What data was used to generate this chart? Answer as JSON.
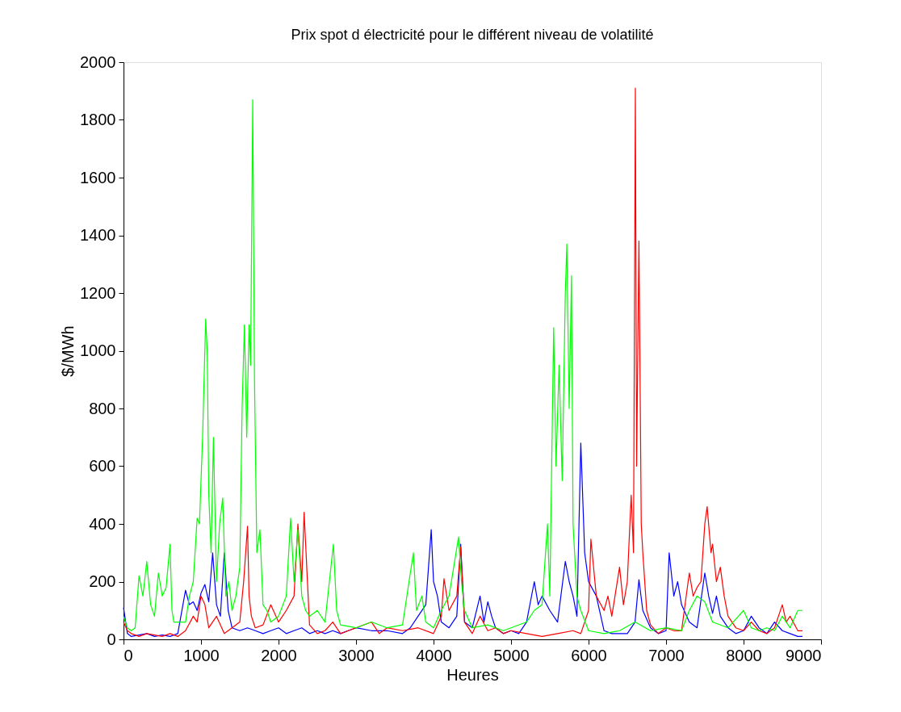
{
  "chart_data": {
    "type": "line",
    "title": "Prix spot d électricité pour le différent niveau de volatilité",
    "xlabel": "Heures",
    "ylabel": "$/MWh",
    "xlim": [
      0,
      9000
    ],
    "ylim": [
      0,
      2000
    ],
    "xticks": [
      0,
      1000,
      2000,
      3000,
      4000,
      5000,
      6000,
      7000,
      8000,
      9000
    ],
    "yticks": [
      0,
      200,
      400,
      600,
      800,
      1000,
      1200,
      1400,
      1600,
      1800,
      2000
    ],
    "grid": false,
    "legend": false,
    "series": [
      {
        "color": "#0000ff",
        "x": [
          0,
          50,
          100,
          200,
          300,
          400,
          500,
          600,
          700,
          800,
          850,
          900,
          950,
          1000,
          1050,
          1100,
          1150,
          1200,
          1250,
          1300,
          1350,
          1400,
          1500,
          1600,
          1700,
          1800,
          1900,
          2000,
          2100,
          2200,
          2300,
          2400,
          2500,
          2600,
          2700,
          2800,
          2900,
          3000,
          3200,
          3400,
          3600,
          3700,
          3800,
          3900,
          3970,
          4000,
          4050,
          4100,
          4200,
          4300,
          4350,
          4400,
          4500,
          4600,
          4650,
          4700,
          4750,
          4800,
          4900,
          5000,
          5100,
          5200,
          5300,
          5350,
          5400,
          5500,
          5600,
          5700,
          5750,
          5800,
          5850,
          5900,
          5950,
          6000,
          6100,
          6200,
          6300,
          6400,
          6500,
          6600,
          6650,
          6700,
          6800,
          6900,
          7000,
          7040,
          7100,
          7150,
          7200,
          7300,
          7400,
          7500,
          7550,
          7600,
          7650,
          7700,
          7800,
          7900,
          8000,
          8100,
          8200,
          8300,
          8400,
          8500,
          8600,
          8700,
          8760
        ],
        "values": [
          110,
          20,
          10,
          15,
          20,
          10,
          15,
          10,
          20,
          170,
          120,
          130,
          100,
          160,
          190,
          130,
          300,
          120,
          80,
          300,
          100,
          40,
          30,
          40,
          30,
          20,
          30,
          40,
          20,
          30,
          40,
          20,
          30,
          20,
          30,
          20,
          30,
          40,
          30,
          30,
          20,
          40,
          80,
          120,
          380,
          200,
          150,
          60,
          40,
          80,
          330,
          60,
          40,
          150,
          60,
          130,
          80,
          40,
          20,
          30,
          20,
          60,
          200,
          120,
          150,
          100,
          60,
          270,
          200,
          150,
          80,
          680,
          300,
          200,
          150,
          30,
          20,
          20,
          20,
          60,
          207,
          100,
          40,
          20,
          30,
          300,
          150,
          200,
          120,
          60,
          40,
          230,
          150,
          90,
          150,
          80,
          40,
          20,
          30,
          80,
          40,
          20,
          60,
          30,
          20,
          10,
          10
        ]
      },
      {
        "color": "#ff0000",
        "x": [
          0,
          50,
          100,
          200,
          300,
          400,
          500,
          600,
          700,
          800,
          900,
          950,
          1000,
          1050,
          1100,
          1200,
          1300,
          1400,
          1500,
          1550,
          1600,
          1620,
          1650,
          1700,
          1800,
          1900,
          2000,
          2100,
          2200,
          2250,
          2300,
          2330,
          2400,
          2500,
          2600,
          2700,
          2800,
          2900,
          3000,
          3200,
          3300,
          3400,
          3600,
          3800,
          4000,
          4100,
          4135,
          4200,
          4300,
          4350,
          4400,
          4500,
          4600,
          4700,
          4800,
          4900,
          5000,
          5200,
          5400,
          5600,
          5800,
          5900,
          6000,
          6030,
          6100,
          6200,
          6250,
          6300,
          6400,
          6450,
          6500,
          6550,
          6580,
          6604,
          6620,
          6650,
          6680,
          6700,
          6750,
          6800,
          6900,
          7000,
          7100,
          7200,
          7300,
          7350,
          7400,
          7450,
          7500,
          7530,
          7580,
          7600,
          7650,
          7700,
          7750,
          7800,
          7900,
          8000,
          8100,
          8200,
          8300,
          8400,
          8500,
          8550,
          8600,
          8700,
          8760
        ],
        "values": [
          60,
          30,
          20,
          10,
          20,
          15,
          10,
          20,
          10,
          30,
          80,
          60,
          150,
          120,
          40,
          80,
          20,
          40,
          60,
          200,
          392,
          150,
          80,
          40,
          50,
          120,
          60,
          100,
          150,
          400,
          200,
          440,
          50,
          20,
          30,
          60,
          20,
          30,
          40,
          60,
          20,
          40,
          30,
          40,
          20,
          80,
          210,
          100,
          150,
          320,
          60,
          20,
          80,
          30,
          40,
          20,
          30,
          20,
          10,
          20,
          30,
          20,
          100,
          347,
          150,
          100,
          150,
          80,
          250,
          120,
          200,
          500,
          300,
          1910,
          600,
          1380,
          400,
          300,
          100,
          50,
          20,
          40,
          30,
          30,
          230,
          150,
          180,
          200,
          400,
          460,
          300,
          330,
          200,
          250,
          150,
          80,
          40,
          30,
          60,
          30,
          20,
          40,
          120,
          60,
          80,
          30,
          30
        ]
      },
      {
        "color": "#00ff00",
        "x": [
          0,
          50,
          100,
          150,
          200,
          250,
          300,
          350,
          400,
          450,
          500,
          550,
          600,
          625,
          650,
          700,
          800,
          850,
          900,
          950,
          980,
          1020,
          1060,
          1080,
          1100,
          1130,
          1160,
          1200,
          1240,
          1280,
          1320,
          1360,
          1400,
          1450,
          1500,
          1530,
          1560,
          1590,
          1620,
          1640,
          1667,
          1690,
          1720,
          1760,
          1800,
          1850,
          1900,
          2000,
          2100,
          2156,
          2200,
          2250,
          2300,
          2350,
          2400,
          2500,
          2600,
          2708,
          2750,
          2800,
          3000,
          3200,
          3400,
          3600,
          3740,
          3780,
          3850,
          3900,
          4000,
          4100,
          4200,
          4323,
          4360,
          4400,
          4500,
          4700,
          4900,
          5000,
          5200,
          5300,
          5400,
          5470,
          5500,
          5550,
          5580,
          5620,
          5660,
          5700,
          5720,
          5750,
          5780,
          5800,
          5850,
          5900,
          6000,
          6200,
          6400,
          6600,
          6800,
          7000,
          7200,
          7300,
          7400,
          7500,
          7600,
          7800,
          8000,
          8100,
          8200,
          8300,
          8400,
          8500,
          8600,
          8700,
          8760
        ],
        "values": [
          80,
          40,
          30,
          40,
          220,
          150,
          270,
          120,
          80,
          230,
          150,
          180,
          330,
          100,
          60,
          60,
          60,
          150,
          200,
          420,
          400,
          700,
          1110,
          1000,
          500,
          300,
          700,
          200,
          400,
          490,
          150,
          200,
          100,
          150,
          250,
          800,
          1090,
          700,
          1090,
          950,
          1870,
          900,
          300,
          380,
          120,
          100,
          60,
          80,
          150,
          420,
          200,
          380,
          150,
          100,
          80,
          100,
          60,
          330,
          100,
          50,
          40,
          60,
          40,
          50,
          300,
          100,
          150,
          60,
          40,
          100,
          150,
          355,
          200,
          100,
          40,
          50,
          30,
          40,
          60,
          100,
          120,
          400,
          150,
          1080,
          600,
          950,
          550,
          1200,
          1370,
          800,
          1260,
          400,
          150,
          100,
          30,
          20,
          30,
          60,
          30,
          40,
          30,
          100,
          150,
          130,
          60,
          40,
          100,
          40,
          30,
          40,
          30,
          80,
          40,
          100,
          100
        ]
      }
    ]
  }
}
